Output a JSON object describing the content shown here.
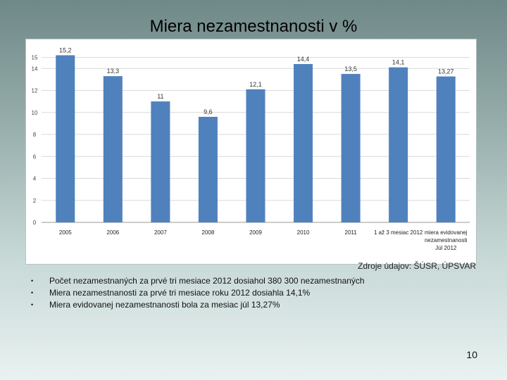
{
  "slide": {
    "title": "Miera nezamestnanosti v %",
    "source": "Zdroje údajov: ŠÚSR, ÚPSVAR",
    "bullets": [
      "Počet nezamestnaných za prvé tri mesiace 2012 dosiahol 380 300 nezamestnaných",
      "Miera nezamestnanosti za prvé tri mesiace roku 2012 dosiahla 14,1%",
      "Miera evidovanej nezamestnanosti bola za mesiac júl 13,27%"
    ],
    "page_number": "10"
  },
  "chart_data": {
    "type": "bar",
    "categories": [
      "2005",
      "2006",
      "2007",
      "2008",
      "2009",
      "2010",
      "2011",
      "1 až 3 mesiac 2012",
      "miera evidovanej nezamestnanosti Júl 2012"
    ],
    "category_lines": [
      [
        "2005"
      ],
      [
        "2006"
      ],
      [
        "2007"
      ],
      [
        "2008"
      ],
      [
        "2009"
      ],
      [
        "2010"
      ],
      [
        "2011"
      ],
      [
        "1 až 3 mesiac 2012"
      ],
      [
        "miera evidovanej",
        "nezamestnanosti",
        "Júl 2012"
      ]
    ],
    "values": [
      15.2,
      13.3,
      11,
      9.6,
      12.1,
      14.4,
      13.5,
      14.1,
      13.27
    ],
    "value_labels": [
      "15,2",
      "13,3",
      "11",
      "9,6",
      "12,1",
      "14,4",
      "13,5",
      "14,1",
      "13,27"
    ],
    "ylim": [
      0,
      16
    ],
    "yticks": [
      0,
      2,
      4,
      6,
      8,
      10,
      12,
      14,
      15
    ],
    "grid": true,
    "bar_color": "#4f81bd",
    "title": "",
    "xlabel": "",
    "ylabel": ""
  }
}
